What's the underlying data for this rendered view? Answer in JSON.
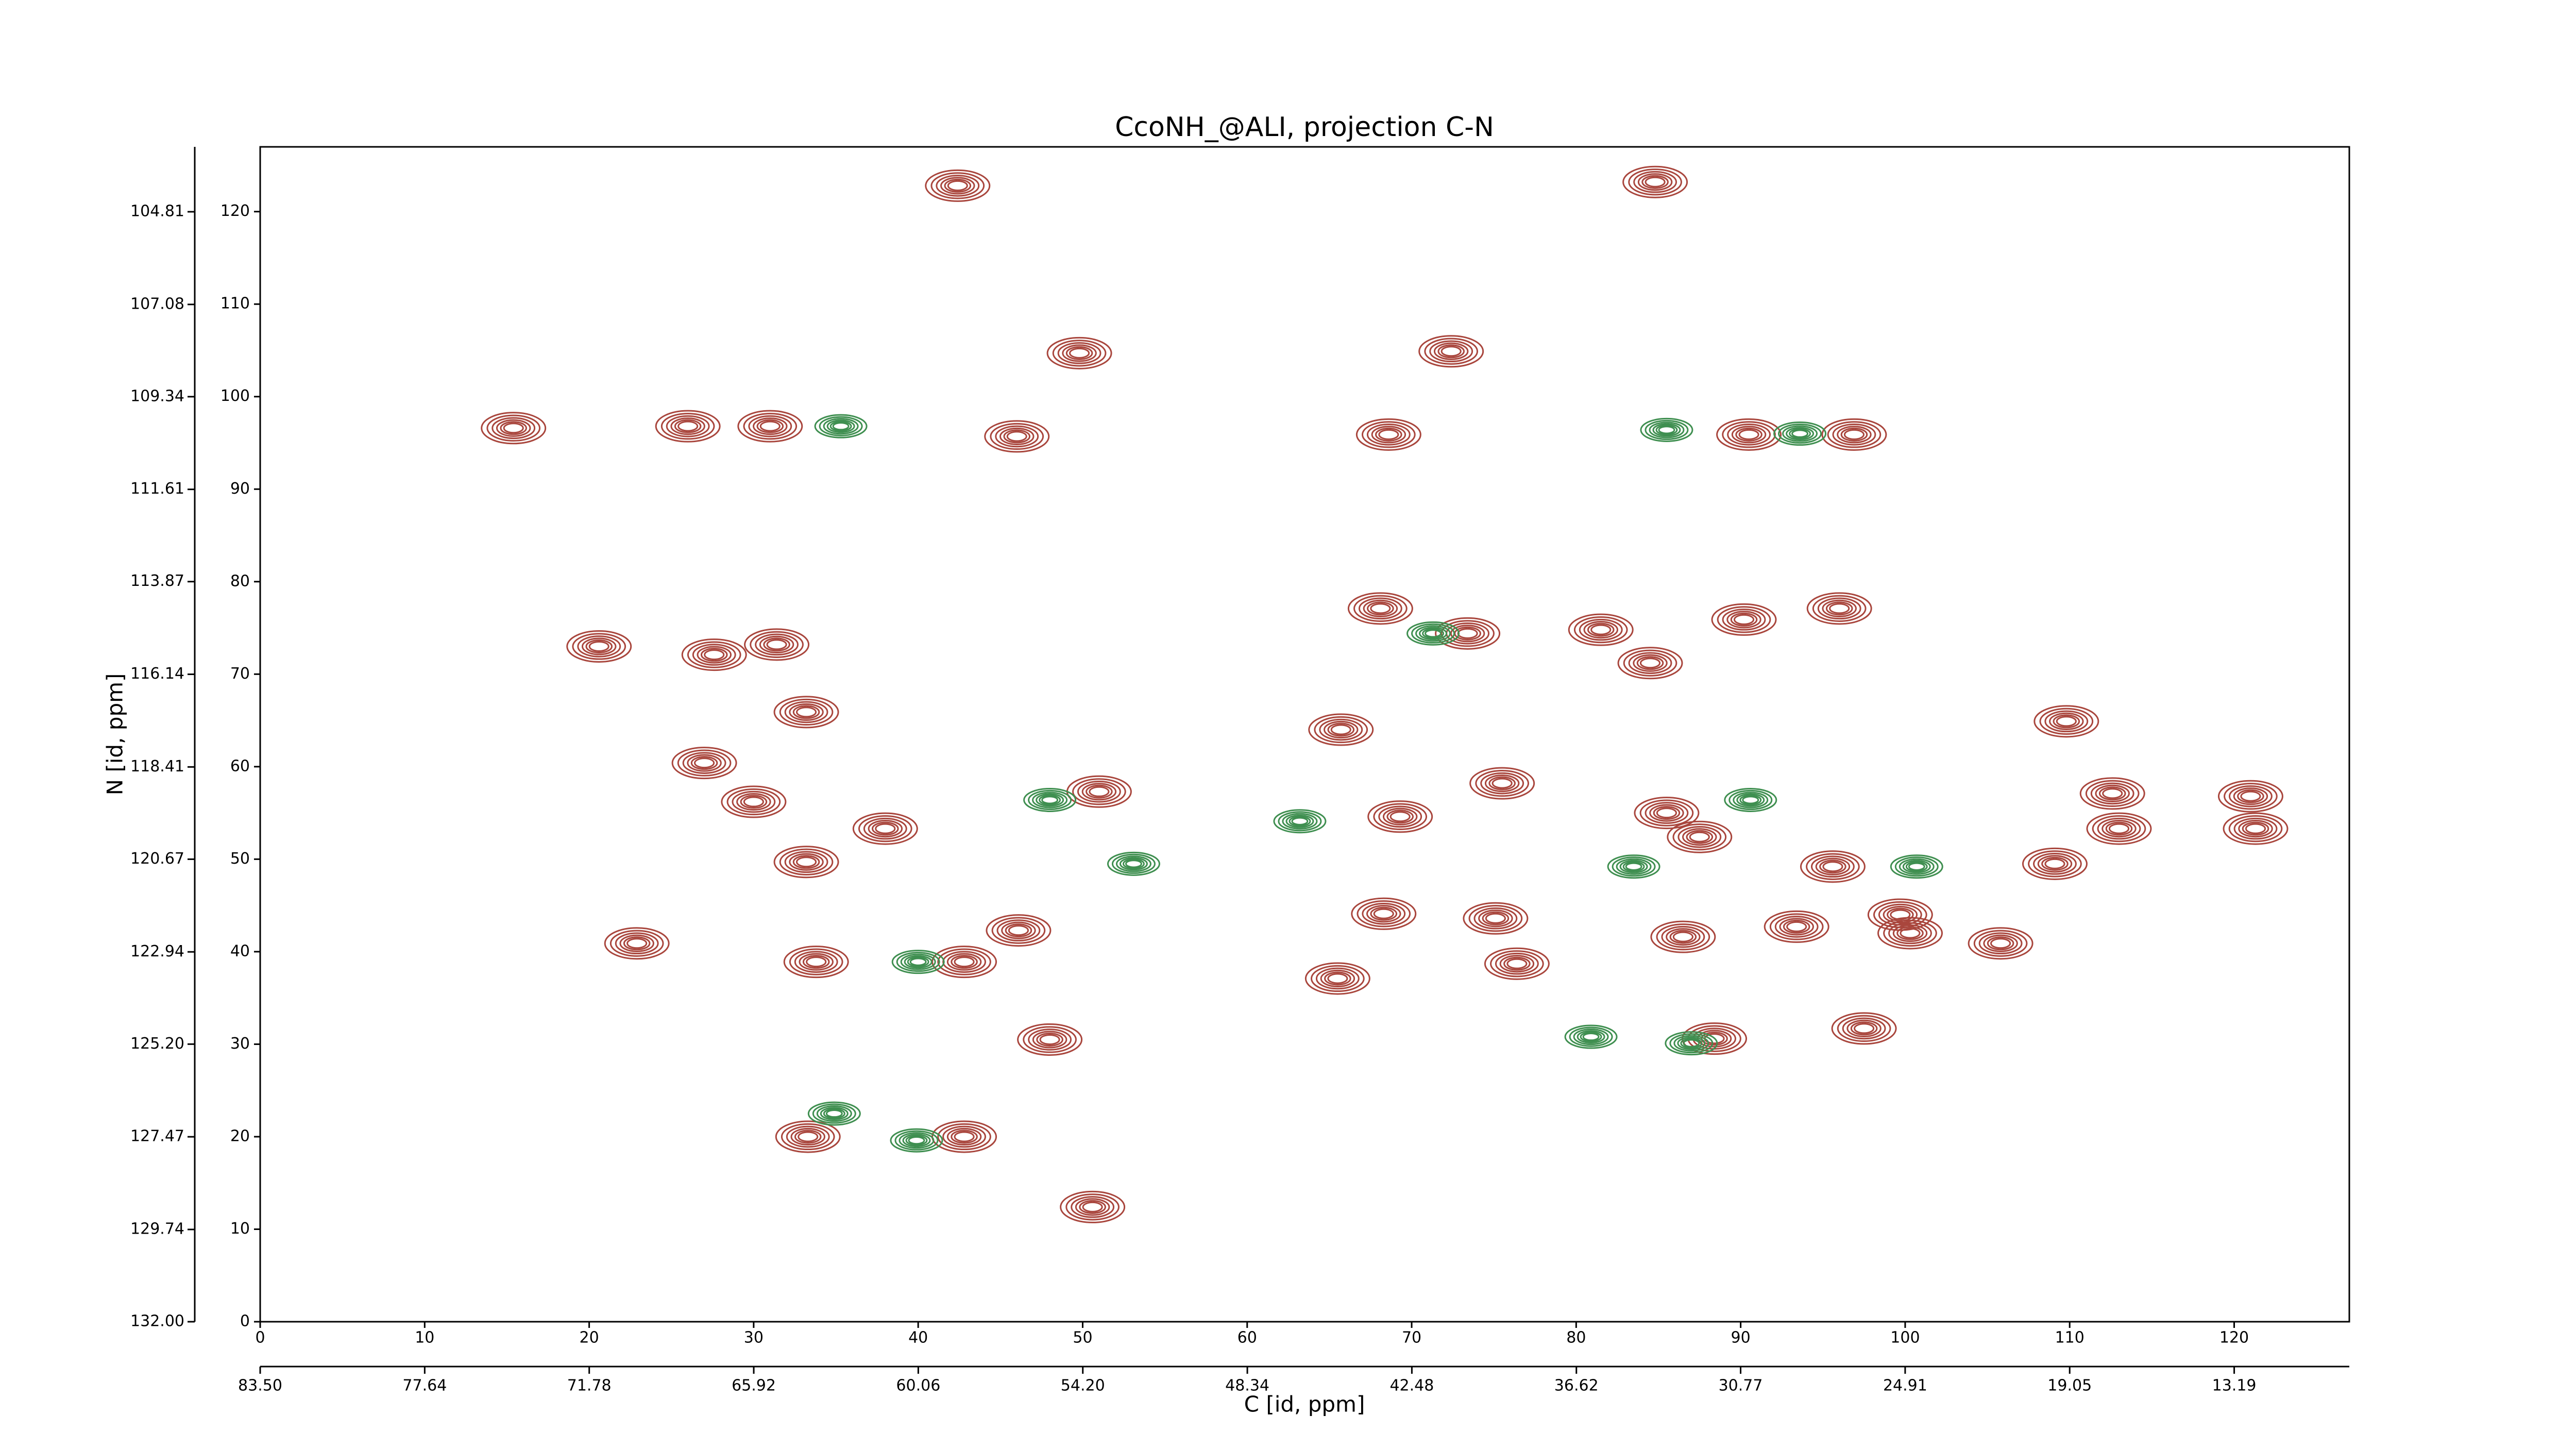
{
  "chart_data": {
    "type": "contour",
    "title": "CcoNH_@ALI, projection C-N",
    "xlabel": "C [id, ppm]",
    "ylabel": "N [id, ppm]",
    "xlim": [
      0,
      127
    ],
    "ylim": [
      0,
      127
    ],
    "xticks": [
      0,
      10,
      20,
      30,
      40,
      50,
      60,
      70,
      80,
      90,
      100,
      110,
      120
    ],
    "yticks": [
      0,
      10,
      20,
      30,
      40,
      50,
      60,
      70,
      80,
      90,
      100,
      110,
      120
    ],
    "x2lim": [
      83.5,
      9.09
    ],
    "x2ticks": [
      {
        "value": 83.5,
        "label": "83.50"
      },
      77.64,
      71.78,
      65.92,
      60.06,
      {
        "value": 54.2,
        "label": "54.20"
      },
      48.34,
      42.48,
      36.62,
      30.77,
      24.91,
      19.05,
      13.19
    ],
    "y2lim": [
      132.0,
      103.22
    ],
    "y2ticks": [
      {
        "value": 132,
        "label": "132.00"
      },
      129.74,
      127.47,
      {
        "value": 125.2,
        "label": "125.20"
      },
      122.94,
      120.67,
      118.41,
      116.14,
      113.87,
      111.61,
      109.34,
      107.08,
      104.81
    ],
    "series": [
      {
        "color": "#a9463d",
        "x": [
          42.4,
          84.8,
          49.8,
          72.4,
          15.4,
          26.0,
          31.0,
          46.0,
          68.6,
          90.5,
          96.9,
          96.0,
          68.1,
          20.6,
          27.6,
          31.4,
          73.4,
          81.5,
          84.5,
          90.2,
          33.2,
          65.7,
          109.8,
          27.0,
          30.0,
          51.0,
          112.6,
          121.0,
          121.3,
          113.0,
          38.0,
          33.2,
          109.1,
          75.5,
          69.3,
          85.5,
          68.3,
          75.1,
          22.9,
          33.8,
          42.8,
          46.1,
          65.5,
          76.4,
          105.8,
          86.5,
          93.4,
          100.3,
          99.7,
          88.4,
          97.5,
          48.0,
          33.3,
          42.8,
          50.6,
          87.5,
          95.6
        ],
        "y": [
          122.8,
          123.2,
          104.7,
          104.9,
          96.6,
          96.8,
          96.8,
          95.7,
          95.9,
          95.9,
          95.9,
          77.1,
          77.1,
          73.0,
          72.1,
          73.2,
          74.4,
          74.8,
          71.2,
          75.9,
          65.9,
          64.0,
          64.9,
          60.4,
          56.2,
          57.3,
          57.1,
          56.8,
          53.3,
          53.3,
          53.3,
          49.7,
          49.5,
          58.2,
          54.6,
          55.0,
          44.1,
          43.6,
          40.9,
          38.9,
          38.9,
          42.3,
          37.1,
          38.7,
          40.9,
          41.6,
          42.7,
          42.0,
          44.0,
          30.6,
          31.7,
          30.5,
          20.0,
          20.0,
          12.4,
          52.4,
          49.2
        ]
      },
      {
        "color": "#3f8f50",
        "x": [
          35.3,
          85.5,
          93.6,
          53.1,
          48.0,
          63.2,
          90.6,
          100.7,
          40.0,
          34.9,
          39.9,
          80.9,
          87.0,
          71.3,
          83.5
        ],
        "y": [
          96.8,
          96.4,
          96.0,
          49.5,
          56.4,
          54.1,
          56.4,
          49.2,
          38.9,
          22.5,
          19.6,
          30.8,
          30.1,
          74.4,
          49.2
        ]
      }
    ]
  }
}
